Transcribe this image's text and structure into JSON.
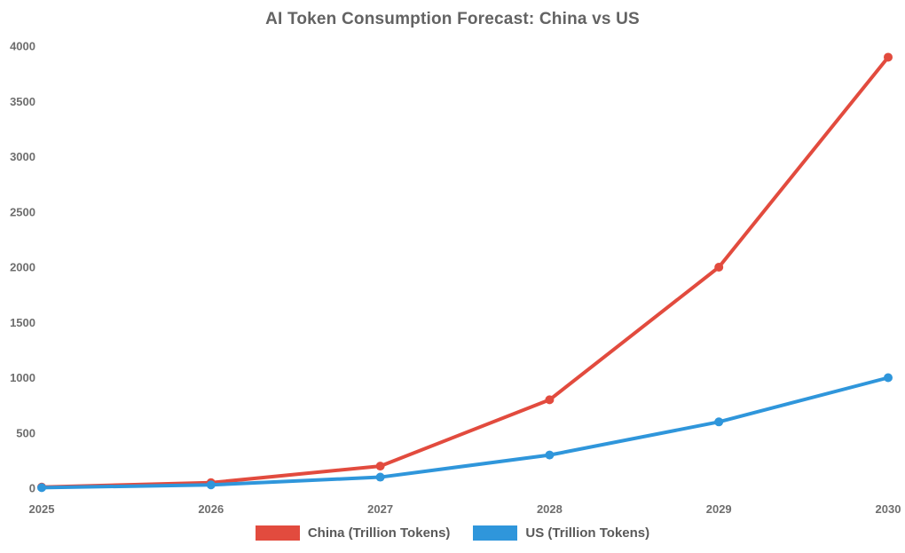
{
  "chart_data": {
    "type": "line",
    "title": "AI Token Consumption Forecast: China vs US",
    "categories": [
      "2025",
      "2026",
      "2027",
      "2028",
      "2029",
      "2030"
    ],
    "series": [
      {
        "name": "China (Trillion Tokens)",
        "color": "#e24b3e",
        "values": [
          10,
          50,
          200,
          800,
          2000,
          3900
        ]
      },
      {
        "name": "US (Trillion Tokens)",
        "color": "#2f96db",
        "values": [
          5,
          30,
          100,
          300,
          600,
          1000
        ]
      }
    ],
    "yticks": [
      0,
      500,
      1000,
      1500,
      2000,
      2500,
      3000,
      3500,
      4000
    ],
    "ylim": [
      0,
      4000
    ],
    "xlabel": "",
    "ylabel": "",
    "grid": false,
    "legend_position": "bottom",
    "text_color": "#636363"
  }
}
